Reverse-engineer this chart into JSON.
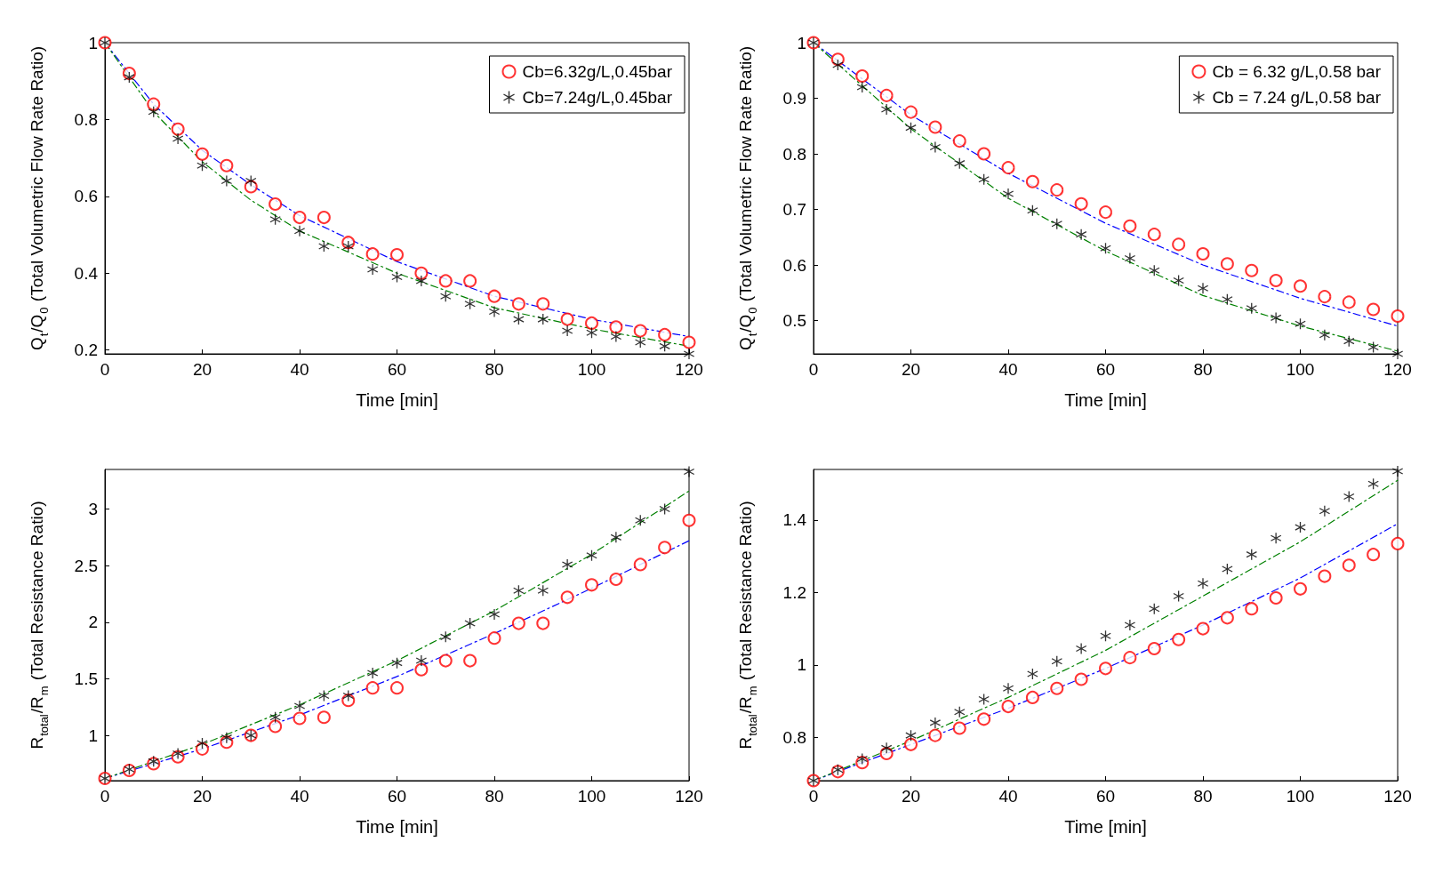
{
  "chart_data": [
    {
      "type": "scatter",
      "xlabel": "Time [min]",
      "ylabel": "Q$_{t}$/Q$_{0}$ (Total Volumetric Flow Rate Ratio)",
      "x": [
        0,
        5,
        10,
        15,
        20,
        25,
        30,
        35,
        40,
        45,
        50,
        55,
        60,
        65,
        70,
        75,
        80,
        85,
        90,
        95,
        100,
        105,
        110,
        115,
        120
      ],
      "xlim": [
        0,
        120
      ],
      "xticks": [
        0,
        20,
        40,
        60,
        80,
        100,
        120
      ],
      "ylim": [
        0.19,
        1
      ],
      "yticks": [
        0.2,
        0.4,
        0.6,
        0.8,
        1
      ],
      "grid": false,
      "legend": "top right",
      "series": [
        {
          "name": "Cb=6.32g/L,0.45bar",
          "color": "#ff0000",
          "marker": "circle",
          "values": [
            1,
            0.92,
            0.84,
            0.775,
            0.71,
            0.68,
            0.625,
            0.58,
            0.545,
            0.545,
            0.48,
            0.45,
            0.448,
            0.4,
            0.38,
            0.38,
            0.34,
            0.32,
            0.32,
            0.28,
            0.27,
            0.26,
            0.25,
            0.24,
            0.22
          ]
        },
        {
          "name": "Cb=7.24g/L,0.45bar",
          "color": "#000000",
          "marker": "star",
          "values": [
            1,
            0.91,
            0.82,
            0.75,
            0.68,
            0.64,
            0.64,
            0.54,
            0.51,
            0.47,
            0.47,
            0.41,
            0.39,
            0.38,
            0.34,
            0.32,
            0.3,
            0.28,
            0.28,
            0.25,
            0.245,
            0.235,
            0.22,
            0.21,
            0.19
          ]
        },
        {
          "type": "line",
          "color": "#0000ff",
          "line_style": "dashed",
          "marker": "none",
          "x": [
            0,
            10,
            20,
            30,
            40,
            60,
            80,
            100,
            120
          ],
          "values": [
            1,
            0.84,
            0.72,
            0.63,
            0.55,
            0.43,
            0.34,
            0.28,
            0.235
          ]
        },
        {
          "type": "line",
          "color": "#008000",
          "line_style": "dashed",
          "marker": "none",
          "x": [
            0,
            10,
            20,
            30,
            40,
            60,
            80,
            100,
            120
          ],
          "values": [
            1,
            0.82,
            0.69,
            0.59,
            0.51,
            0.4,
            0.31,
            0.255,
            0.21
          ]
        }
      ]
    },
    {
      "type": "scatter",
      "xlabel": "Time [min]",
      "ylabel": "Q$_{t}$/Q$_{0}$ (Total Volumetric Flow Rate Ratio)",
      "x": [
        0,
        5,
        10,
        15,
        20,
        25,
        30,
        35,
        40,
        45,
        50,
        55,
        60,
        65,
        70,
        75,
        80,
        85,
        90,
        95,
        100,
        105,
        110,
        115,
        120
      ],
      "xlim": [
        0,
        120
      ],
      "xticks": [
        0,
        20,
        40,
        60,
        80,
        100,
        120
      ],
      "ylim": [
        0.44,
        1
      ],
      "yticks": [
        0.5,
        0.6,
        0.7,
        0.8,
        0.9,
        1
      ],
      "grid": false,
      "legend": "top right",
      "series": [
        {
          "name": "Cb = 6.32 g/L,0.58 bar",
          "color": "#ff0000",
          "marker": "circle",
          "values": [
            1,
            0.97,
            0.94,
            0.905,
            0.875,
            0.848,
            0.823,
            0.8,
            0.775,
            0.75,
            0.735,
            0.71,
            0.695,
            0.67,
            0.655,
            0.637,
            0.62,
            0.602,
            0.59,
            0.572,
            0.562,
            0.543,
            0.533,
            0.52,
            0.508
          ]
        },
        {
          "name": "Cb = 7.24 g/L,0.58 bar",
          "color": "#000000",
          "marker": "star",
          "values": [
            1,
            0.96,
            0.92,
            0.88,
            0.847,
            0.812,
            0.783,
            0.754,
            0.728,
            0.698,
            0.674,
            0.655,
            0.63,
            0.612,
            0.59,
            0.572,
            0.558,
            0.538,
            0.522,
            0.505,
            0.494,
            0.474,
            0.463,
            0.452,
            0.44
          ]
        },
        {
          "type": "line",
          "color": "#0000ff",
          "line_style": "dashed",
          "marker": "none",
          "x": [
            0,
            20,
            40,
            60,
            80,
            100,
            120
          ],
          "values": [
            1,
            0.87,
            0.765,
            0.675,
            0.6,
            0.54,
            0.49
          ]
        },
        {
          "type": "line",
          "color": "#008000",
          "line_style": "dashed",
          "marker": "none",
          "x": [
            0,
            20,
            40,
            60,
            80,
            100,
            120
          ],
          "values": [
            1,
            0.845,
            0.72,
            0.625,
            0.545,
            0.49,
            0.445
          ]
        }
      ]
    },
    {
      "type": "scatter",
      "xlabel": "Time [min]",
      "ylabel": "R$_{total}$/R$_{m}$ (Total Resistance Ratio)",
      "x": [
        0,
        5,
        10,
        15,
        20,
        25,
        30,
        35,
        40,
        45,
        50,
        55,
        60,
        65,
        70,
        75,
        80,
        85,
        90,
        95,
        100,
        105,
        110,
        115,
        120
      ],
      "xlim": [
        0,
        120
      ],
      "xticks": [
        0,
        20,
        40,
        60,
        80,
        100,
        120
      ],
      "ylim": [
        0.6,
        3.35
      ],
      "yticks": [
        1,
        1.5,
        2,
        2.5,
        3
      ],
      "grid": false,
      "series": [
        {
          "color": "#ff0000",
          "marker": "circle",
          "values": [
            0.62,
            0.69,
            0.75,
            0.81,
            0.88,
            0.94,
            1,
            1.08,
            1.15,
            1.16,
            1.31,
            1.42,
            1.42,
            1.58,
            1.66,
            1.66,
            1.86,
            1.99,
            1.99,
            2.22,
            2.33,
            2.38,
            2.51,
            2.66,
            2.9
          ]
        },
        {
          "color": "#000000",
          "marker": "star",
          "values": [
            0.62,
            0.7,
            0.77,
            0.84,
            0.93,
            0.98,
            1,
            1.16,
            1.26,
            1.35,
            1.35,
            1.55,
            1.64,
            1.66,
            1.87,
            1.99,
            2.07,
            2.28,
            2.28,
            2.51,
            2.59,
            2.75,
            2.9,
            3,
            3.33
          ]
        },
        {
          "type": "line",
          "color": "#0000ff",
          "line_style": "dashed",
          "marker": "none",
          "x": [
            0,
            20,
            40,
            60,
            80,
            100,
            120
          ],
          "values": [
            0.62,
            0.88,
            1.18,
            1.52,
            1.9,
            2.3,
            2.72
          ]
        },
        {
          "type": "line",
          "color": "#008000",
          "line_style": "dashed",
          "marker": "none",
          "x": [
            0,
            20,
            40,
            60,
            80,
            100,
            120
          ],
          "values": [
            0.62,
            0.92,
            1.27,
            1.66,
            2.1,
            2.6,
            3.16
          ]
        }
      ]
    },
    {
      "type": "scatter",
      "xlabel": "Time [min]",
      "ylabel": "R$_{total}$/R$_{m}$ (Total Resistance Ratio)",
      "x": [
        0,
        5,
        10,
        15,
        20,
        25,
        30,
        35,
        40,
        45,
        50,
        55,
        60,
        65,
        70,
        75,
        80,
        85,
        90,
        95,
        100,
        105,
        110,
        115,
        120
      ],
      "xlim": [
        0,
        120
      ],
      "xticks": [
        0,
        20,
        40,
        60,
        80,
        100,
        120
      ],
      "ylim": [
        0.68,
        1.54
      ],
      "yticks": [
        0.8,
        1,
        1.2,
        1.4
      ],
      "grid": false,
      "series": [
        {
          "color": "#ff0000",
          "marker": "circle",
          "values": [
            0.68,
            0.705,
            0.73,
            0.755,
            0.78,
            0.805,
            0.825,
            0.85,
            0.885,
            0.91,
            0.935,
            0.96,
            0.99,
            1.02,
            1.045,
            1.07,
            1.1,
            1.13,
            1.155,
            1.185,
            1.21,
            1.245,
            1.275,
            1.305,
            1.335
          ]
        },
        {
          "color": "#000000",
          "marker": "star",
          "values": [
            0.68,
            0.71,
            0.74,
            0.77,
            0.805,
            0.84,
            0.87,
            0.905,
            0.935,
            0.975,
            1.01,
            1.045,
            1.08,
            1.11,
            1.155,
            1.19,
            1.225,
            1.265,
            1.305,
            1.35,
            1.38,
            1.425,
            1.465,
            1.5,
            1.535
          ]
        },
        {
          "type": "line",
          "color": "#0000ff",
          "line_style": "dashed",
          "marker": "none",
          "x": [
            0,
            20,
            40,
            60,
            80,
            100,
            120
          ],
          "values": [
            0.68,
            0.78,
            0.88,
            0.99,
            1.11,
            1.24,
            1.39
          ]
        },
        {
          "type": "line",
          "color": "#008000",
          "line_style": "dashed",
          "marker": "none",
          "x": [
            0,
            20,
            40,
            60,
            80,
            100,
            120
          ],
          "values": [
            0.68,
            0.79,
            0.91,
            1.04,
            1.19,
            1.34,
            1.51
          ]
        }
      ]
    }
  ]
}
